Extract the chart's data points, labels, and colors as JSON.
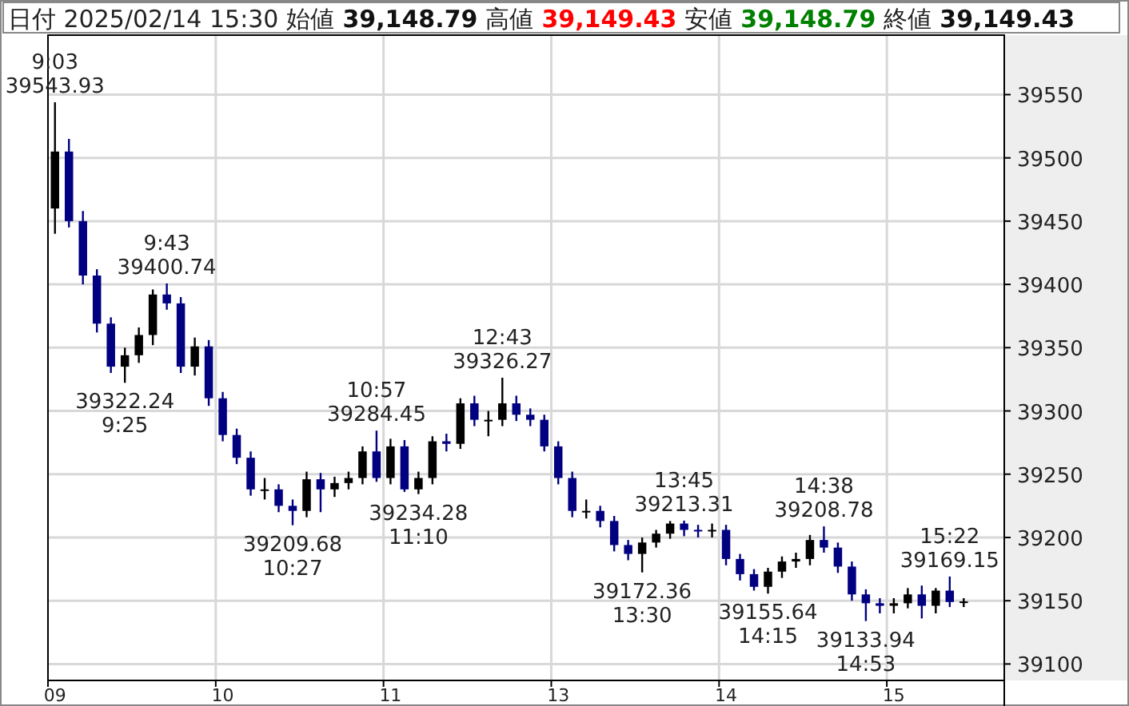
{
  "chart_data": {
    "type": "candlestick",
    "title": "日付 2025/02/14 15:30 始値 39,148.79 高値 39,149.43 安値 39,148.79 終値 39,149.43",
    "categories": [
      "09",
      null,
      null,
      null,
      null,
      null,
      null,
      null,
      null,
      null,
      null,
      null,
      "10",
      null,
      null,
      null,
      null,
      null,
      null,
      null,
      null,
      null,
      null,
      null,
      "11",
      null,
      null,
      null,
      null,
      null,
      null,
      null,
      null,
      null,
      null,
      null,
      "13",
      null,
      null,
      null,
      null,
      null,
      null,
      null,
      null,
      null,
      null,
      null,
      "14",
      null,
      null,
      null,
      null,
      null,
      null,
      null,
      null,
      null,
      null,
      null,
      "15",
      null,
      null,
      null,
      null,
      null
    ],
    "ohlc": [
      [
        39460,
        39543.93,
        39440,
        39505
      ],
      [
        39505,
        39515,
        39445,
        39450
      ],
      [
        39450,
        39458,
        39400,
        39407
      ],
      [
        39407,
        39412,
        39362,
        39369
      ],
      [
        39369,
        39374,
        39330,
        39335
      ],
      [
        39335,
        39350,
        39322.24,
        39344
      ],
      [
        39344,
        39366,
        39338,
        39360
      ],
      [
        39360,
        39396,
        39352,
        39392
      ],
      [
        39392,
        39400.74,
        39380,
        39385
      ],
      [
        39385,
        39390,
        39330,
        39335
      ],
      [
        39335,
        39358,
        39328,
        39351
      ],
      [
        39351,
        39356,
        39304,
        39310
      ],
      [
        39310,
        39315,
        39276,
        39281
      ],
      [
        39281,
        39286,
        39258,
        39263
      ],
      [
        39263,
        39268,
        39233,
        39238
      ],
      [
        39238,
        39247,
        39230,
        39238
      ],
      [
        39238,
        39242,
        39220,
        39225
      ],
      [
        39225,
        39230,
        39209.68,
        39221
      ],
      [
        39221,
        39252,
        39216,
        39246
      ],
      [
        39246,
        39251,
        39220,
        39238
      ],
      [
        39238,
        39248,
        39232,
        39243
      ],
      [
        39243,
        39252,
        39238,
        39247
      ],
      [
        39247,
        39272,
        39242,
        39268
      ],
      [
        39268,
        39284.45,
        39244,
        39247
      ],
      [
        39247,
        39278,
        39242,
        39272
      ],
      [
        39272,
        39277,
        39236,
        39238
      ],
      [
        39238,
        39252,
        39234.28,
        39247
      ],
      [
        39247,
        39280,
        39242,
        39276
      ],
      [
        39276,
        39282,
        39268,
        39274
      ],
      [
        39274,
        39310,
        39270,
        39306
      ],
      [
        39306,
        39312,
        39288,
        39293
      ],
      [
        39293,
        39300,
        39280,
        39293
      ],
      [
        39293,
        39326.27,
        39288,
        39306
      ],
      [
        39306,
        39312,
        39292,
        39297
      ],
      [
        39297,
        39302,
        39288,
        39293
      ],
      [
        39293,
        39297,
        39268,
        39272
      ],
      [
        39272,
        39276,
        39242,
        39247
      ],
      [
        39247,
        39252,
        39216,
        39221
      ],
      [
        39221,
        39230,
        39215,
        39221
      ],
      [
        39221,
        39225,
        39208,
        39213
      ],
      [
        39213,
        39217,
        39189,
        39194
      ],
      [
        39194,
        39198,
        39182,
        39187
      ],
      [
        39187,
        39200,
        39172.36,
        39196
      ],
      [
        39196,
        39206,
        39192,
        39203
      ],
      [
        39203,
        39213,
        39199,
        39211
      ],
      [
        39211,
        39213.31,
        39201,
        39206
      ],
      [
        39206,
        39210,
        39200,
        39205
      ],
      [
        39205,
        39211,
        39200,
        39206
      ],
      [
        39206,
        39210,
        39178,
        39183
      ],
      [
        39183,
        39187,
        39166,
        39171
      ],
      [
        39171,
        39175,
        39158,
        39161
      ],
      [
        39161,
        39176,
        39155.64,
        39173
      ],
      [
        39173,
        39185,
        39168,
        39181
      ],
      [
        39181,
        39188,
        39176,
        39183
      ],
      [
        39183,
        39202,
        39178,
        39198
      ],
      [
        39198,
        39208.78,
        39188,
        39192
      ],
      [
        39192,
        39196,
        39172,
        39177
      ],
      [
        39177,
        39181,
        39150,
        39155
      ],
      [
        39155,
        39159,
        39133.94,
        39148
      ],
      [
        39148,
        39152,
        39140,
        39146
      ],
      [
        39146,
        39152,
        39140,
        39148
      ],
      [
        39148,
        39160,
        39144,
        39155
      ],
      [
        39155,
        39162,
        39136,
        39146
      ],
      [
        39146,
        39160,
        39140,
        39158
      ],
      [
        39158,
        39169.15,
        39145,
        39149
      ],
      [
        39149,
        39152,
        39145,
        39149.43
      ]
    ],
    "colors": [
      "#000000",
      "#000080",
      "#000080",
      "#000080",
      "#000080",
      "#000000",
      "#000000",
      "#000000",
      "#000080",
      "#000080",
      "#000000",
      "#000080",
      "#000080",
      "#000080",
      "#000080",
      "#000000",
      "#000080",
      "#000080",
      "#000000",
      "#000080",
      "#000000",
      "#000000",
      "#000000",
      "#000080",
      "#000000",
      "#000080",
      "#000000",
      "#000000",
      "#000080",
      "#000000",
      "#000080",
      "#000000",
      "#000000",
      "#000080",
      "#000080",
      "#000080",
      "#000080",
      "#000080",
      "#000000",
      "#000080",
      "#000080",
      "#000080",
      "#000000",
      "#000000",
      "#000000",
      "#000080",
      "#000080",
      "#000000",
      "#000080",
      "#000080",
      "#000080",
      "#000000",
      "#000000",
      "#000000",
      "#000000",
      "#000080",
      "#000080",
      "#000080",
      "#000080",
      "#000080",
      "#000000",
      "#000000",
      "#000080",
      "#000000",
      "#000080",
      "#000000"
    ],
    "ylim": [
      39087,
      39597
    ],
    "yticks": [
      39100,
      39150,
      39200,
      39250,
      39300,
      39350,
      39400,
      39450,
      39500,
      39550
    ],
    "grid": true,
    "annotations": [
      {
        "text": "9:03\n39543.93",
        "y": 39543.93
      },
      {
        "text": "39322.24\n9:25",
        "y": 39322.24
      },
      {
        "text": "9:43\n39400.74",
        "y": 39400.74
      },
      {
        "text": "39209.68\n10:27",
        "y": 39209.68
      },
      {
        "text": "10:57\n39284.45",
        "y": 39284.45
      },
      {
        "text": "39234.28\n11:10",
        "y": 39234.28
      },
      {
        "text": "12:43\n39326.27",
        "y": 39326.27
      },
      {
        "text": "39172.36\n13:30",
        "y": 39172.36
      },
      {
        "text": "13:45\n39213.31",
        "y": 39213.31
      },
      {
        "text": "39155.64\n14:15",
        "y": 39155.64
      },
      {
        "text": "14:38\n39208.78",
        "y": 39208.78
      },
      {
        "text": "39133.94\n14:53",
        "y": 39133.94
      },
      {
        "text": "15:22\n39169.15",
        "y": 39169.15
      }
    ]
  }
}
